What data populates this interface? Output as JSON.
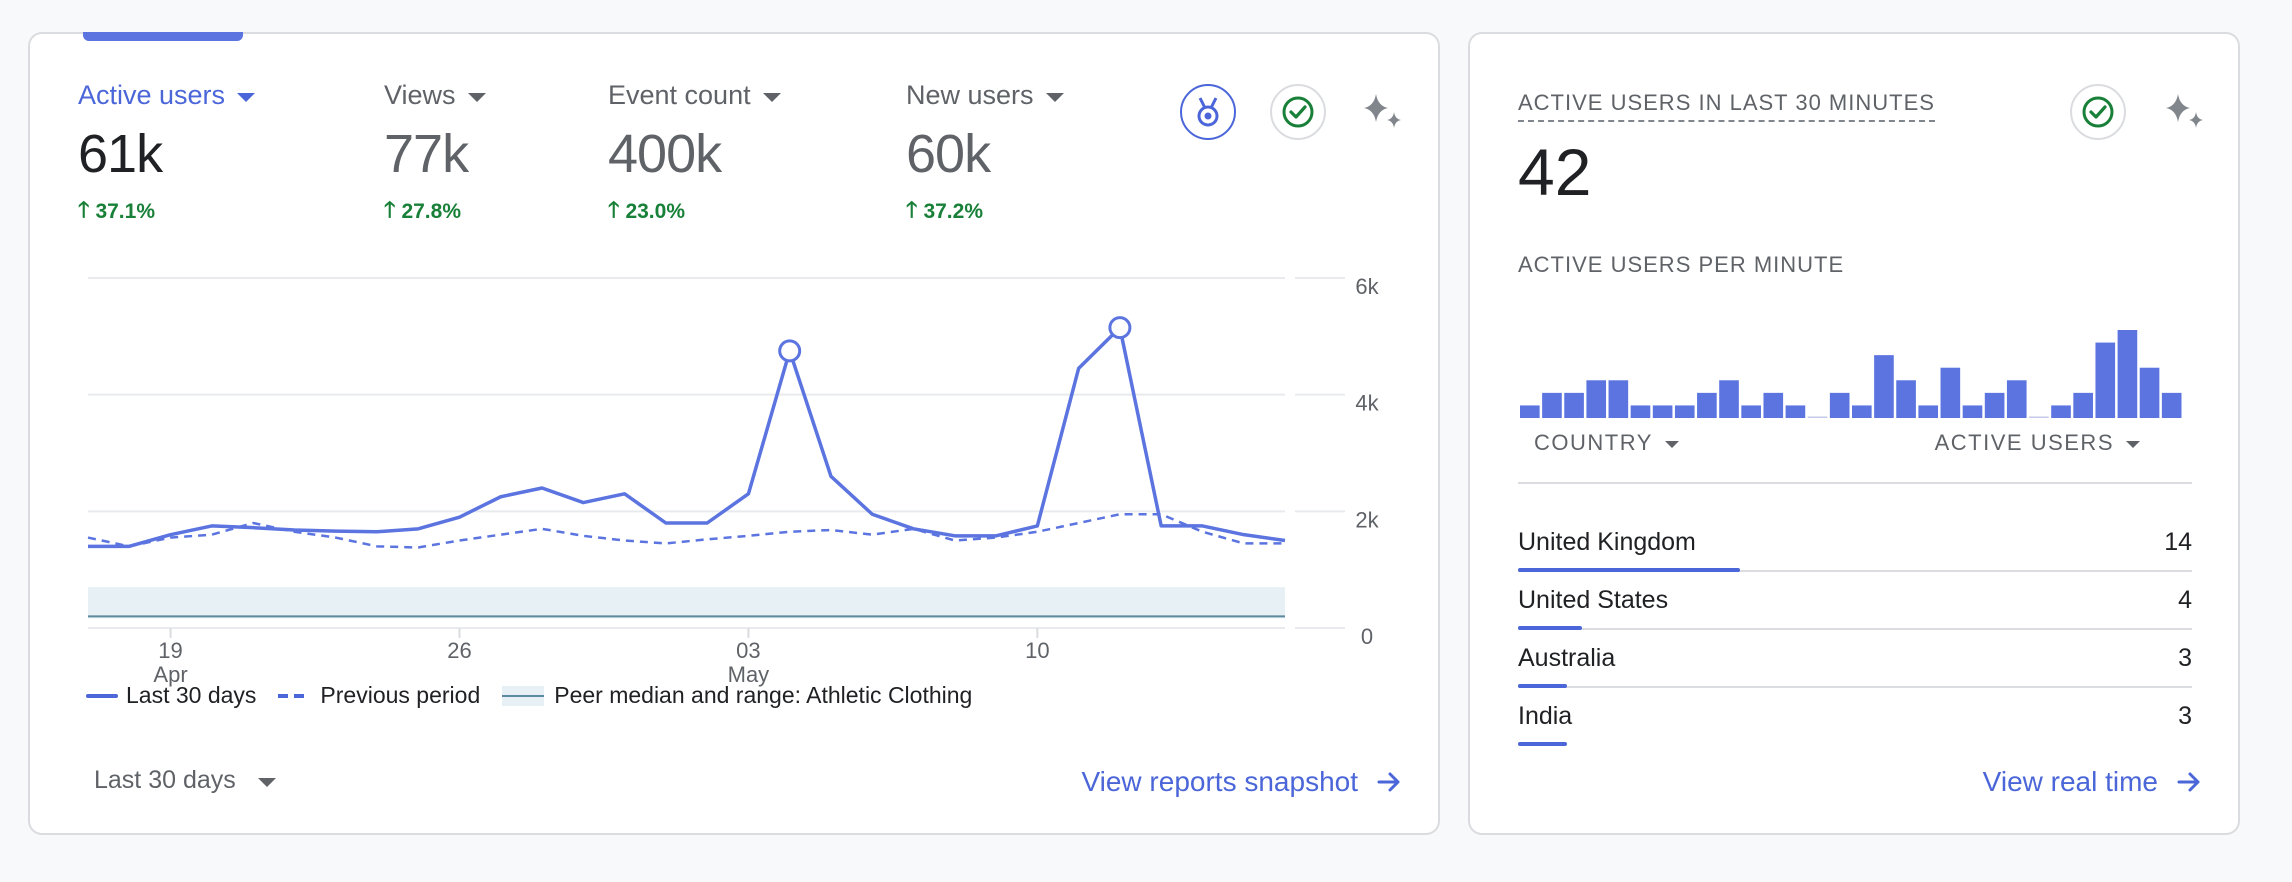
{
  "metrics": [
    {
      "label": "Active users",
      "value": "61k",
      "change": "37.1%"
    },
    {
      "label": "Views",
      "value": "77k",
      "change": "27.8%"
    },
    {
      "label": "Event count",
      "value": "400k",
      "change": "23.0%"
    },
    {
      "label": "New users",
      "value": "60k",
      "change": "37.2%"
    }
  ],
  "icons": [
    "benchmark-badge-icon",
    "check-circle-icon",
    "sparkle-icon"
  ],
  "colors": {
    "accent": "#4b66d8",
    "positive": "#188038",
    "line": "#5b74e0",
    "peer_band": "#e7f0f5"
  },
  "chart_data": {
    "type": "line",
    "x_tick_labels": [
      {
        "day": "19",
        "month": "Apr"
      },
      {
        "day": "26",
        "month": ""
      },
      {
        "day": "03",
        "month": "May"
      },
      {
        "day": "10",
        "month": ""
      }
    ],
    "y_tick_labels": [
      "6k",
      "4k",
      "2k",
      "0"
    ],
    "ylim": [
      0,
      6000
    ],
    "grid": true,
    "series": [
      {
        "name": "Last 30 days",
        "style": "solid",
        "values": [
          1400,
          1400,
          1600,
          1750,
          1720,
          1680,
          1660,
          1650,
          1700,
          1900,
          2250,
          2400,
          2150,
          2300,
          1800,
          1800,
          2300,
          4750,
          2600,
          1950,
          1700,
          1580,
          1580,
          1750,
          4450,
          5150,
          1750,
          1750,
          1600,
          1500
        ]
      },
      {
        "name": "Previous period",
        "style": "dashed",
        "values": [
          1550,
          1400,
          1550,
          1600,
          1800,
          1650,
          1550,
          1400,
          1380,
          1500,
          1600,
          1700,
          1580,
          1500,
          1450,
          1520,
          1580,
          1650,
          1680,
          1600,
          1700,
          1500,
          1550,
          1650,
          1800,
          1950,
          1950,
          1650,
          1450,
          1450
        ]
      },
      {
        "name": "Peer median and range: Athletic Clothing",
        "style": "band",
        "median": 200,
        "range": [
          200,
          700
        ]
      }
    ],
    "highlighted_points": [
      17,
      25
    ]
  },
  "legend": {
    "current": "Last 30 days",
    "previous": "Previous period",
    "peer": "Peer median and range: Athletic Clothing"
  },
  "period_select": {
    "value": "Last 30 days"
  },
  "view_reports_link": "View reports snapshot",
  "realtime": {
    "title": "ACTIVE USERS IN LAST 30 MINUTES",
    "count": "42",
    "per_minute_label": "ACTIVE USERS PER MINUTE",
    "per_minute_values": [
      1,
      2,
      2,
      3,
      3,
      1,
      1,
      1,
      2,
      3,
      1,
      2,
      1,
      0,
      2,
      1,
      5,
      3,
      1,
      4,
      1,
      2,
      3,
      0,
      1,
      2,
      6,
      7,
      4,
      2
    ],
    "columns": {
      "country": "COUNTRY",
      "users": "ACTIVE USERS"
    },
    "rows": [
      {
        "country": "United Kingdom",
        "users": "14",
        "share": 0.33
      },
      {
        "country": "United States",
        "users": "4",
        "share": 0.095
      },
      {
        "country": "Australia",
        "users": "3",
        "share": 0.072
      },
      {
        "country": "India",
        "users": "3",
        "share": 0.072
      }
    ],
    "view_link": "View real time"
  }
}
